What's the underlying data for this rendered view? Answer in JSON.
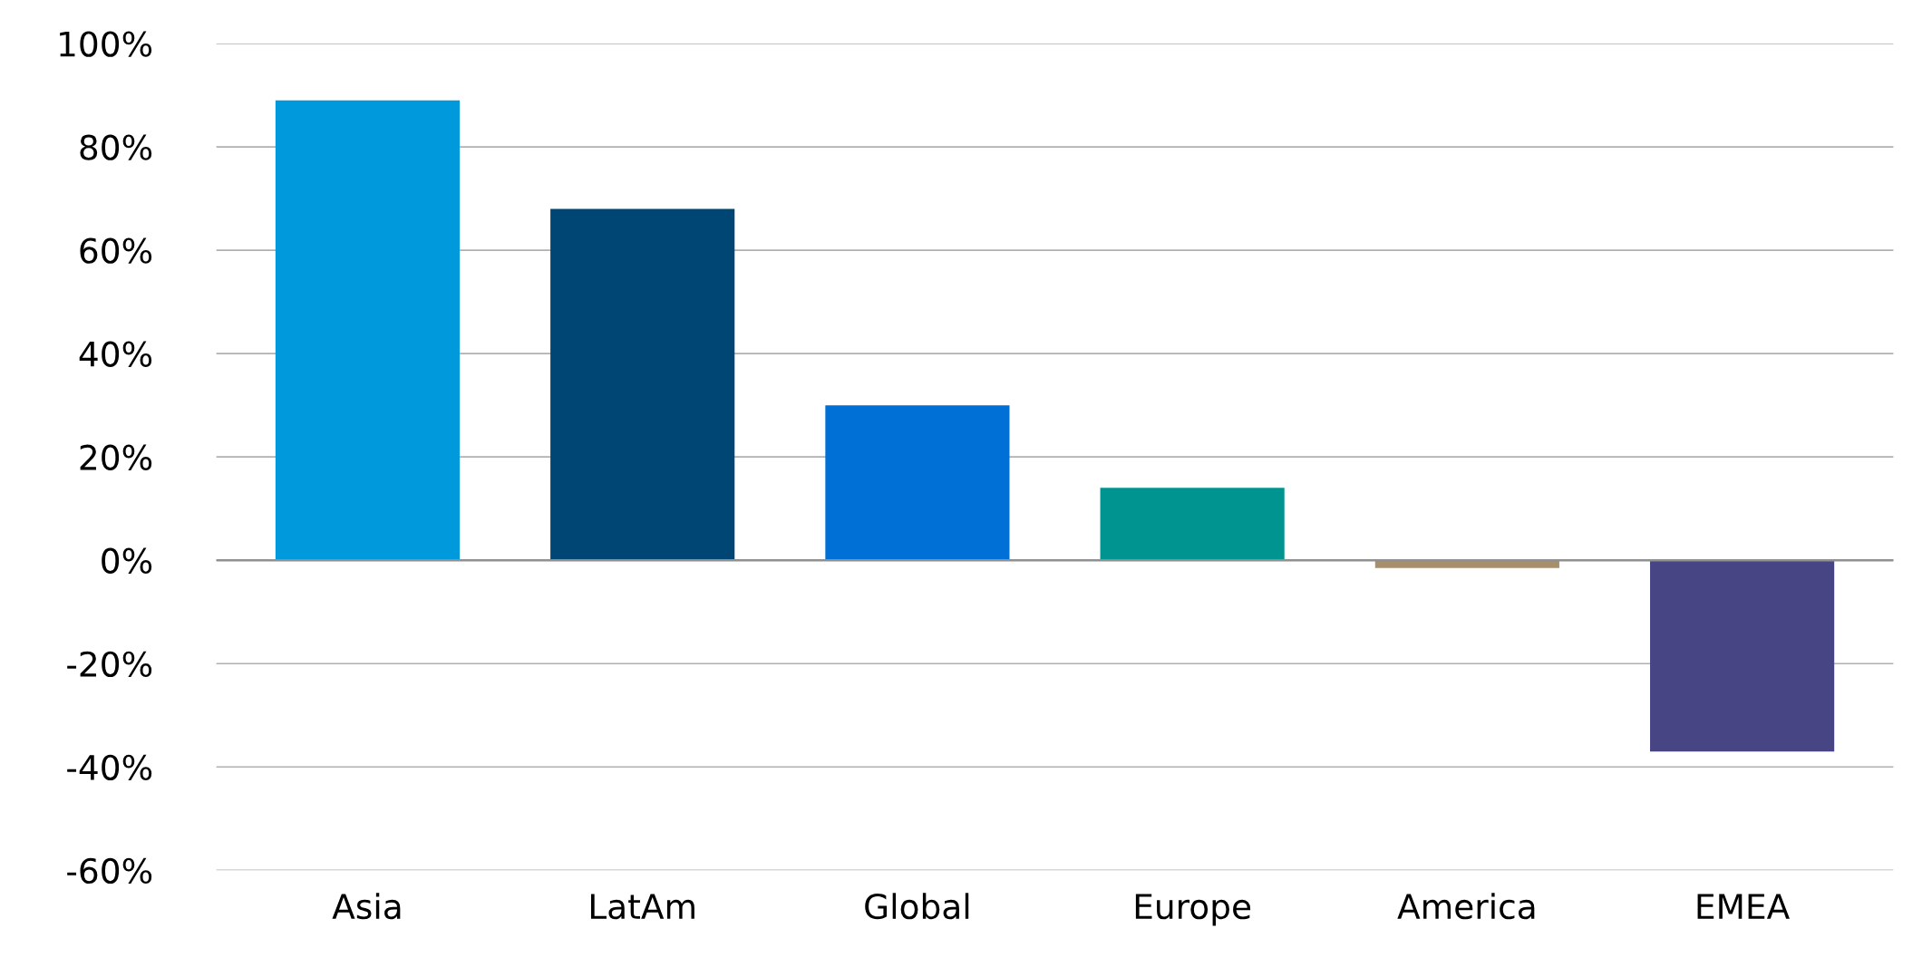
{
  "chart_data": {
    "type": "bar",
    "categories": [
      "Asia",
      "LatAm",
      "Global",
      "Europe",
      "America",
      "EMEA"
    ],
    "values": [
      89,
      68,
      30,
      14,
      -1.5,
      -37
    ],
    "colors": [
      "#0099dc",
      "#004675",
      "#006fd6",
      "#009490",
      "#a88f6c",
      "#474584"
    ],
    "ylim": [
      -60,
      100
    ],
    "yticks": [
      {
        "value": -60,
        "label": "-60%"
      },
      {
        "value": -40,
        "label": "-40%"
      },
      {
        "value": -20,
        "label": "-20%"
      },
      {
        "value": 0,
        "label": "0%"
      },
      {
        "value": 20,
        "label": "20%"
      },
      {
        "value": 40,
        "label": "40%"
      },
      {
        "value": 60,
        "label": "60%"
      },
      {
        "value": 80,
        "label": "80%"
      },
      {
        "value": 100,
        "label": "100%"
      }
    ],
    "grid": "y",
    "legend": false
  }
}
